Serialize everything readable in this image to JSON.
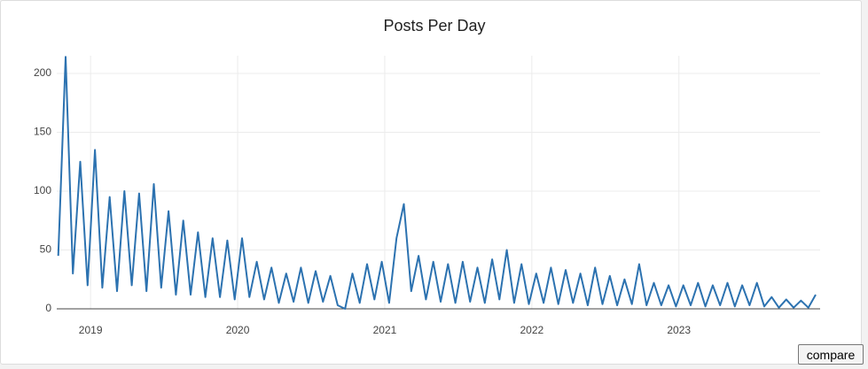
{
  "chart_data": {
    "type": "line",
    "title": "Posts Per Day",
    "x": [
      2018.78,
      2018.83,
      2018.88,
      2018.93,
      2018.98,
      2019.03,
      2019.08,
      2019.13,
      2019.18,
      2019.23,
      2019.28,
      2019.33,
      2019.38,
      2019.43,
      2019.48,
      2019.53,
      2019.58,
      2019.63,
      2019.68,
      2019.73,
      2019.78,
      2019.83,
      2019.88,
      2019.93,
      2019.98,
      2020.03,
      2020.08,
      2020.13,
      2020.18,
      2020.23,
      2020.28,
      2020.33,
      2020.38,
      2020.43,
      2020.48,
      2020.53,
      2020.58,
      2020.63,
      2020.68,
      2020.73,
      2020.78,
      2020.83,
      2020.88,
      2020.93,
      2020.98,
      2021.03,
      2021.08,
      2021.13,
      2021.18,
      2021.23,
      2021.28,
      2021.33,
      2021.38,
      2021.43,
      2021.48,
      2021.53,
      2021.58,
      2021.63,
      2021.68,
      2021.73,
      2021.78,
      2021.83,
      2021.88,
      2021.93,
      2021.98,
      2022.03,
      2022.08,
      2022.13,
      2022.18,
      2022.23,
      2022.28,
      2022.33,
      2022.38,
      2022.43,
      2022.48,
      2022.53,
      2022.58,
      2022.63,
      2022.68,
      2022.73,
      2022.78,
      2022.83,
      2022.88,
      2022.93,
      2022.98,
      2023.03,
      2023.08,
      2023.13,
      2023.18,
      2023.23,
      2023.28,
      2023.33,
      2023.38,
      2023.43,
      2023.48,
      2023.53,
      2023.58,
      2023.63,
      2023.68,
      2023.73,
      2023.78,
      2023.83,
      2023.88,
      2023.93
    ],
    "series": [
      {
        "color": "#2c72b0",
        "values": [
          45,
          214,
          30,
          125,
          20,
          135,
          18,
          95,
          15,
          100,
          20,
          98,
          15,
          106,
          18,
          83,
          12,
          75,
          12,
          65,
          10,
          60,
          10,
          58,
          8,
          60,
          10,
          40,
          8,
          35,
          5,
          30,
          6,
          35,
          5,
          32,
          6,
          28,
          3,
          0,
          30,
          5,
          38,
          8,
          40,
          5,
          60,
          89,
          15,
          45,
          8,
          40,
          6,
          38,
          5,
          40,
          6,
          35,
          5,
          42,
          8,
          50,
          5,
          38,
          4,
          30,
          5,
          35,
          4,
          33,
          5,
          30,
          3,
          35,
          4,
          28,
          3,
          25,
          4,
          38,
          3,
          22,
          3,
          20,
          2,
          20,
          3,
          22,
          2,
          20,
          3,
          22,
          2,
          20,
          3,
          22,
          2,
          10,
          1,
          8,
          1,
          7,
          1,
          12
        ]
      }
    ],
    "xlim": [
      2018.77,
      2023.96
    ],
    "xticks": [
      2019,
      2020,
      2021,
      2022,
      2023
    ],
    "ylim": [
      0,
      215
    ],
    "yticks": [
      0,
      50,
      100,
      150,
      200
    ],
    "grid": true
  },
  "compare_button": "compare"
}
